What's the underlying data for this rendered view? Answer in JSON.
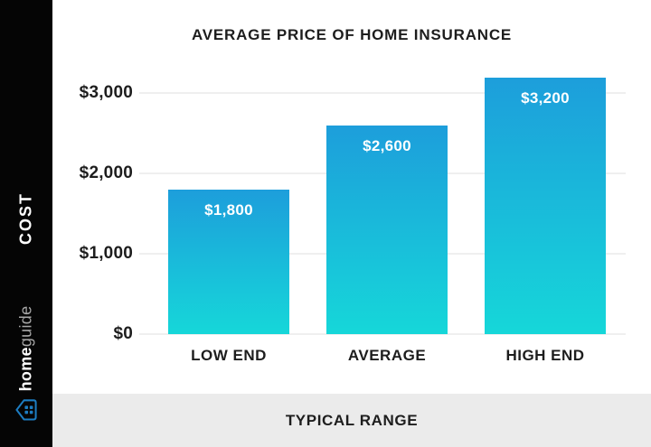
{
  "chart_data": {
    "type": "bar",
    "title": "AVERAGE PRICE OF HOME INSURANCE",
    "categories": [
      "LOW END",
      "AVERAGE",
      "HIGH END"
    ],
    "values": [
      1800,
      2600,
      3200
    ],
    "value_labels": [
      "$1,800",
      "$2,600",
      "$3,200"
    ],
    "y_ticks": [
      {
        "value": 3000,
        "label": "$3,000"
      },
      {
        "value": 2000,
        "label": "$2,000"
      },
      {
        "value": 1000,
        "label": "$1,000"
      },
      {
        "value": 0,
        "label": "$0"
      }
    ],
    "ylim": [
      0,
      3400
    ],
    "ylabel": "COST",
    "xlabel": "TYPICAL RANGE",
    "grid": "horizontal",
    "legend_position": "none",
    "bar_color_top": "#1d9edb",
    "bar_color_bottom": "#16d7d9"
  },
  "sidebar": {
    "axis_label": "COST",
    "logo_home": "home",
    "logo_guide": "guide"
  },
  "footer": {
    "label": "TYPICAL RANGE"
  },
  "colors": {
    "sidebar_bg": "#050505",
    "footer_bg": "#ebebeb",
    "text": "#1d1d1d",
    "gridline": "#efefef",
    "bar_value_text": "#ffffff",
    "logo_guide_gray": "#a7a7a7",
    "logo_icon_blue": "#1d7dc2"
  }
}
